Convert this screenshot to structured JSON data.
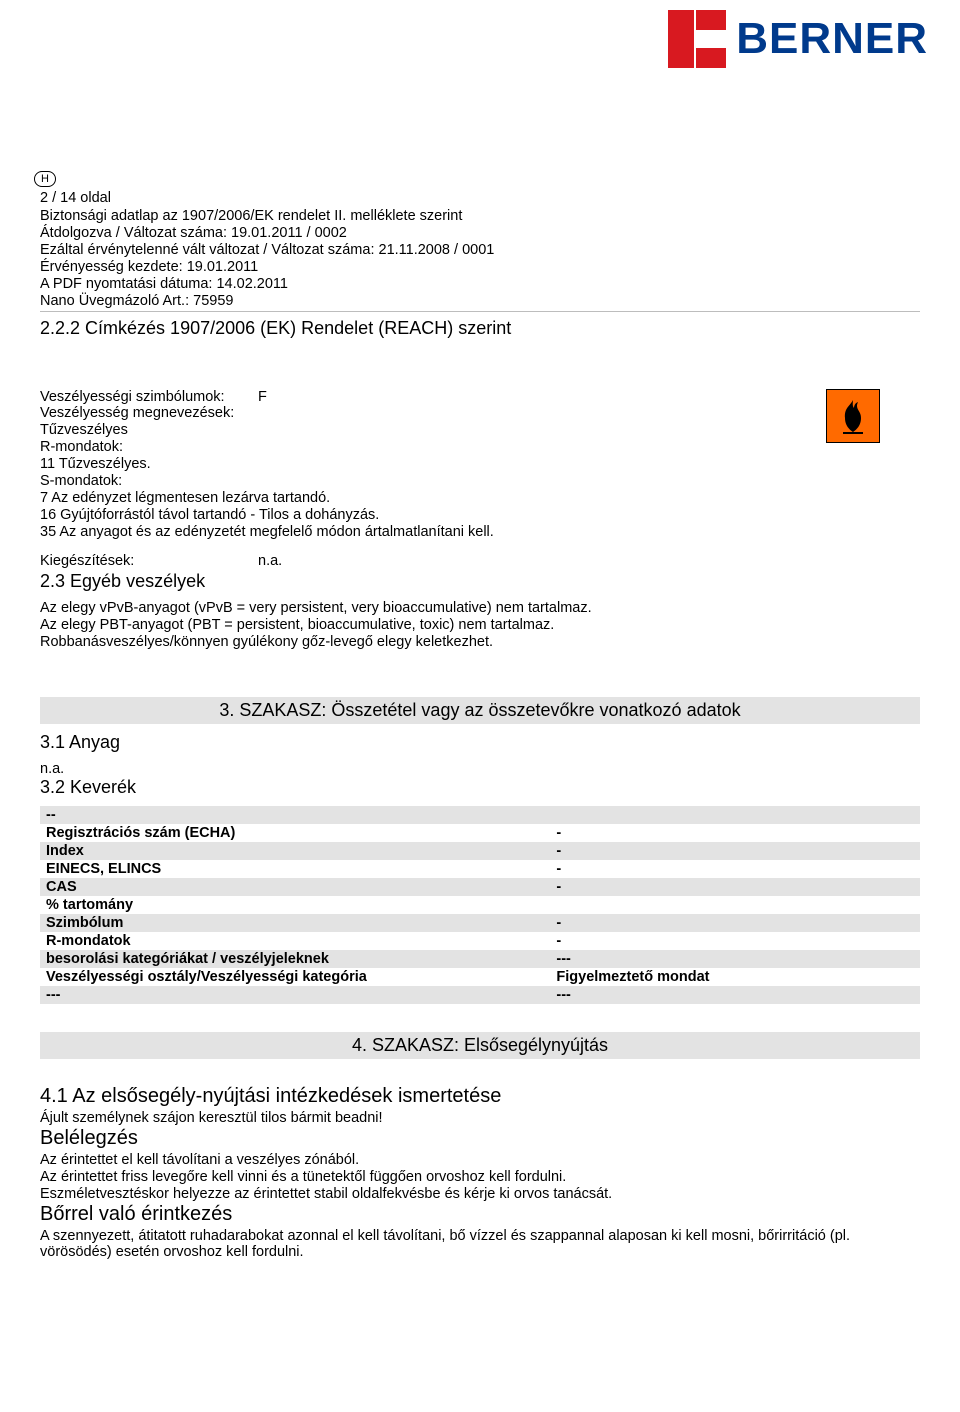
{
  "logo": {
    "text": "BERNER",
    "color": "#003a8c",
    "accent": "#d81920"
  },
  "h_badge": "H",
  "meta": {
    "page": "2 / 14 oldal",
    "l1": "Biztonsági adatlap az 1907/2006/EK rendelet II. melléklete szerint",
    "l2": "Átdolgozva / Változat száma: 19.01.2011  / 0002",
    "l3": "Ezáltal érvénytelenné vált változat / Változat száma: 21.11.2008  / 0001",
    "l4": "Érvényesség kezdete: 19.01.2011",
    "l5": "A PDF nyomtatási dátuma: 14.02.2011",
    "l6": "Nano Üvegmázoló  Art.: 75959"
  },
  "s22": {
    "title": "2.2.2 Címkézés 1907/2006 (EK) Rendelet (REACH) szerint",
    "sym_label": "Veszélyességi szimbólumok:",
    "sym_val": "F",
    "name_label": "Veszélyesség megnevezések:",
    "name_val": "Tűzveszélyes",
    "r_label": "R-mondatok:",
    "r1": "11 Tűzveszélyes.",
    "s_label": "S-mondatok:",
    "s1": "7 Az edényzet légmentesen lezárva tartandó.",
    "s2": "16 Gyújtóforrástól távol tartandó - Tilos a dohányzás.",
    "s3": "35 Az anyagot és az edényzetét megfelelő módon ártalmatlanítani kell.",
    "suppl_label": "Kiegészítések:",
    "suppl_val": "n.a."
  },
  "s23": {
    "title": "2.3 Egyéb veszélyek",
    "p1": "Az elegy vPvB-anyagot (vPvB = very persistent, very bioaccumulative) nem tartalmaz.",
    "p2": "Az elegy PBT-anyagot (PBT = persistent, bioaccumulative, toxic) nem tartalmaz.",
    "p3": "Robbanásveszélyes/könnyen gyúlékony gőz-levegő elegy keletkezhet."
  },
  "s3": {
    "bar": "3. SZAKASZ: Összetétel vagy az összetevőkre vonatkozó adatok",
    "anyag": "3.1 Anyag",
    "na": "n.a.",
    "keverek": "3.2 Keverék",
    "rows": [
      [
        "--",
        ""
      ],
      [
        "Regisztrációs szám (ECHA)",
        "-"
      ],
      [
        "Index",
        "-"
      ],
      [
        "EINECS, ELINCS",
        "-"
      ],
      [
        "CAS",
        "-"
      ],
      [
        "% tartomány",
        ""
      ],
      [
        "Szimbólum",
        "-"
      ],
      [
        "R-mondatok",
        "-"
      ],
      [
        "besorolási kategóriákat / veszélyjeleknek",
        "---"
      ],
      [
        "Veszélyességi osztály/Veszélyességi kategória",
        "Figyelmeztető mondat"
      ],
      [
        "---",
        "---"
      ]
    ]
  },
  "s4": {
    "bar": "4. SZAKASZ: Elsősegélynyújtás",
    "h1": "4.1 Az elsősegély-nyújtási intézkedések ismertetése",
    "p1": "Ájult személynek szájon keresztül tilos bármit beadni!",
    "h2": "Belélegzés",
    "p2": "Az érintettet el kell távolítani a veszélyes zónából.",
    "p3": "Az érintettet friss levegőre kell vinni és a tünetektől függően orvoshoz kell fordulni.",
    "p4": "Eszméletvesztéskor helyezze az érintettet stabil oldalfekvésbe és kérje ki orvos tanácsát.",
    "h3": "Bőrrel való érintkezés",
    "p5": "A szennyezett, átitatott ruhadarabokat azonnal el kell távolítani, bő vízzel és szappannal alaposan ki kell mosni, bőrirritáció (pl. vörösödés) esetén orvoshoz kell fordulni."
  },
  "hazard_icon": {
    "bg": "#ff6a00",
    "type": "flame"
  }
}
